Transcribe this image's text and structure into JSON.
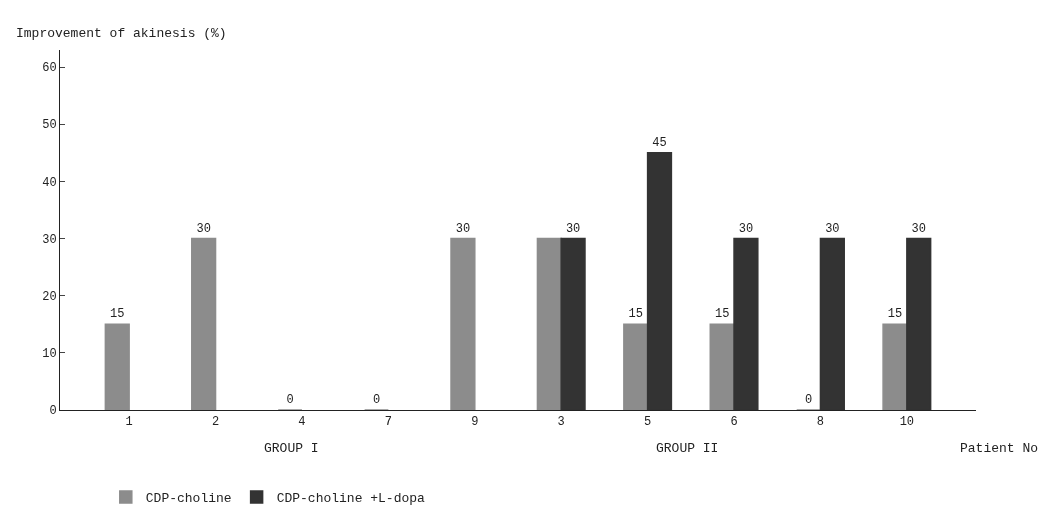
{
  "chart_data": {
    "type": "bar",
    "ylabel": "Improvement of akinesis (%)",
    "xlabel": "Patient No",
    "categories": [
      "1",
      "2",
      "4",
      "7",
      "9",
      "3",
      "5",
      "6",
      "8",
      "10"
    ],
    "series": [
      {
        "name": "CDP-choline",
        "color": "#8c8c8c",
        "values": [
          15,
          30,
          0,
          0,
          30,
          30,
          15,
          15,
          0,
          15
        ],
        "value_labels": [
          "15",
          "30",
          "0",
          "0",
          "30",
          null,
          "15",
          "15",
          "0",
          "15"
        ]
      },
      {
        "name": "CDP-choline +L-dopa",
        "color": "#333333",
        "values": [
          null,
          null,
          null,
          null,
          null,
          30,
          45,
          30,
          30,
          30
        ],
        "value_labels": [
          null,
          null,
          null,
          null,
          null,
          "30",
          "45",
          "30",
          "30",
          "30"
        ]
      }
    ],
    "ylim": [
      0,
      63
    ],
    "yticks": [
      0,
      10,
      20,
      30,
      40,
      50,
      60
    ],
    "legend": "bottom",
    "annotations": [
      "GROUP I",
      "GROUP II"
    ]
  }
}
